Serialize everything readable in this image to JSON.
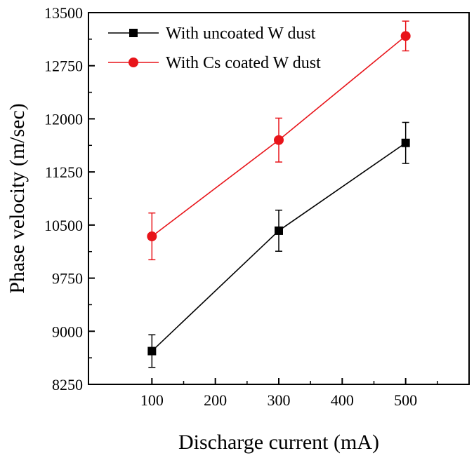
{
  "chart_data": {
    "type": "line",
    "xlabel": "Discharge current (mA)",
    "ylabel": "Phase velocity (m/sec)",
    "xlim": [
      0,
      600
    ],
    "ylim": [
      8250,
      13500
    ],
    "xticks": [
      100,
      200,
      300,
      400,
      500
    ],
    "yticks": [
      8250,
      9000,
      9750,
      10500,
      11250,
      12000,
      12750,
      13500
    ],
    "x_tick_labels": [
      "100",
      "200",
      "300",
      "400",
      "500"
    ],
    "y_tick_labels": [
      "8250",
      "9000",
      "9750",
      "10500",
      "11250",
      "12000",
      "12750",
      "13500"
    ],
    "legend_position": "top-left",
    "grid": false,
    "series": [
      {
        "name": "With uncoated W dust",
        "color": "#000000",
        "marker": "square",
        "x": [
          100,
          300,
          500
        ],
        "y": [
          8720,
          10420,
          11660
        ],
        "error": [
          230,
          290,
          290
        ]
      },
      {
        "name": "With Cs coated W dust",
        "color": "#e8141a",
        "marker": "circle",
        "x": [
          100,
          300,
          500
        ],
        "y": [
          10340,
          11700,
          13170
        ],
        "error": [
          330,
          310,
          210
        ]
      }
    ]
  }
}
